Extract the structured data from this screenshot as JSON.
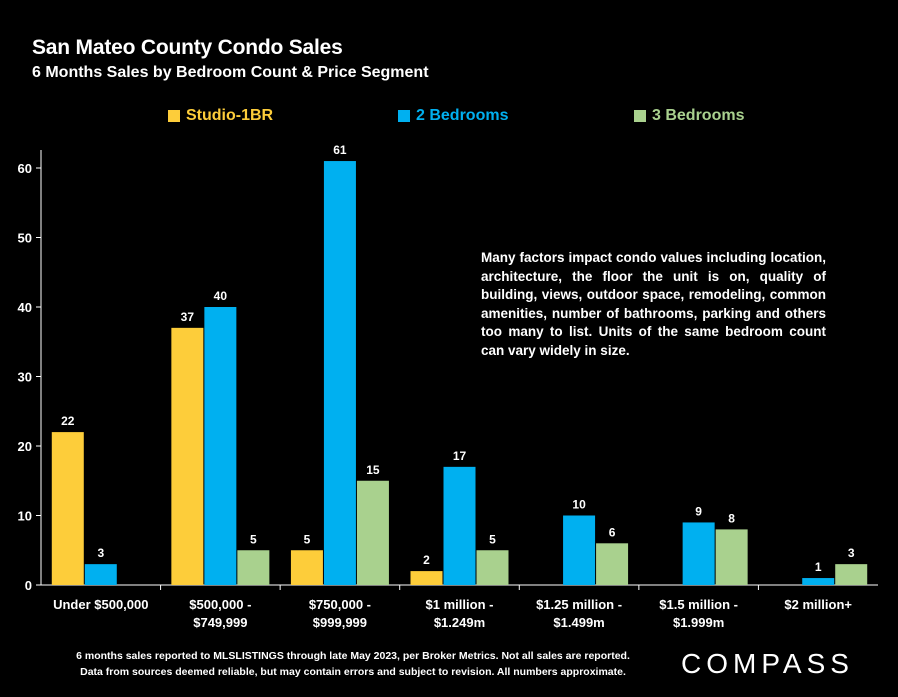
{
  "header": {
    "title": "San Mateo County Condo  Sales",
    "subtitle": "6 Months Sales by Bedroom Count & Price Segment"
  },
  "colors": {
    "studio": "#FDCD3A",
    "two_bed": "#00B0F0",
    "three_bed": "#A9D18E",
    "axis": "#ffffff",
    "background": "#000000"
  },
  "chart_data": {
    "type": "bar",
    "categories": [
      [
        "Under $500,000"
      ],
      [
        "$500,000 -",
        "$749,999"
      ],
      [
        "$750,000 -",
        "$999,999"
      ],
      [
        "$1 million -",
        "$1.249m"
      ],
      [
        "$1.25 million -",
        "$1.499m"
      ],
      [
        "$1.5 million -",
        "$1.999m"
      ],
      [
        "$2 million+"
      ]
    ],
    "series": [
      {
        "name": "Studio-1BR",
        "values": [
          22,
          37,
          5,
          2,
          null,
          null,
          null
        ]
      },
      {
        "name": "2 Bedrooms",
        "values": [
          3,
          40,
          61,
          17,
          10,
          9,
          1
        ]
      },
      {
        "name": "3 Bedrooms",
        "values": [
          null,
          5,
          15,
          5,
          6,
          8,
          3
        ]
      }
    ],
    "ylim": [
      0,
      60
    ],
    "yticks": [
      0,
      10,
      20,
      30,
      40,
      50,
      60
    ],
    "legend": "top",
    "grid": false
  },
  "note": "Many factors impact condo values including location, architecture, the floor the unit is on, quality of building, views, outdoor space, remodeling, common amenities, number of bathrooms, parking and others too many to list. Units of the same bedroom count can vary widely in size.",
  "footer": {
    "line1": "6 months sales reported to MLSLISTINGS through late May 2023, per Broker Metrics. Not all sales are reported.",
    "line2": "Data from sources deemed reliable, but may contain errors and subject to revision. All numbers approximate."
  },
  "logo": "COMPASS"
}
